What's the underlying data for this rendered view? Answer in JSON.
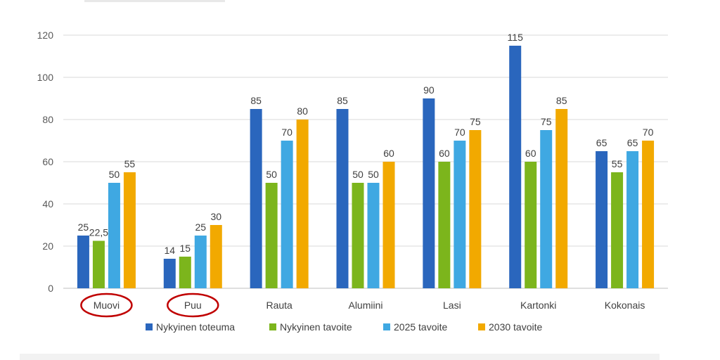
{
  "chart_data": {
    "type": "bar",
    "categories": [
      "Muovi",
      "Puu",
      "Rauta",
      "Alumiini",
      "Lasi",
      "Kartonki",
      "Kokonais"
    ],
    "highlighted_categories": [
      "Muovi",
      "Puu"
    ],
    "series": [
      {
        "name": "Nykyinen toteuma",
        "color": "#2a66bd",
        "values": [
          25,
          14,
          85,
          85,
          90,
          115,
          65
        ],
        "labels": [
          "25",
          "14",
          "85",
          "85",
          "90",
          "115",
          "65"
        ]
      },
      {
        "name": "Nykyinen tavoite",
        "color": "#7cb51c",
        "values": [
          22.5,
          15,
          50,
          50,
          60,
          60,
          55
        ],
        "labels": [
          "22,5",
          "15",
          "50",
          "50",
          "60",
          "60",
          "55"
        ]
      },
      {
        "name": "2025 tavoite",
        "color": "#3fa8e2",
        "values": [
          50,
          25,
          70,
          50,
          70,
          75,
          65
        ],
        "labels": [
          "50",
          "25",
          "70",
          "50",
          "70",
          "75",
          "65"
        ]
      },
      {
        "name": "2030 tavoite",
        "color": "#f2a900",
        "values": [
          55,
          30,
          80,
          60,
          75,
          85,
          70
        ],
        "labels": [
          "55",
          "30",
          "80",
          "60",
          "75",
          "85",
          "70"
        ]
      }
    ],
    "ylim": [
      0,
      120
    ],
    "yticks": [
      "0",
      "20",
      "40",
      "60",
      "80",
      "100",
      "120"
    ],
    "title": "",
    "xlabel": "",
    "ylabel": "",
    "grid": true,
    "legend": "bottom",
    "highlight_color": "#c00000"
  }
}
